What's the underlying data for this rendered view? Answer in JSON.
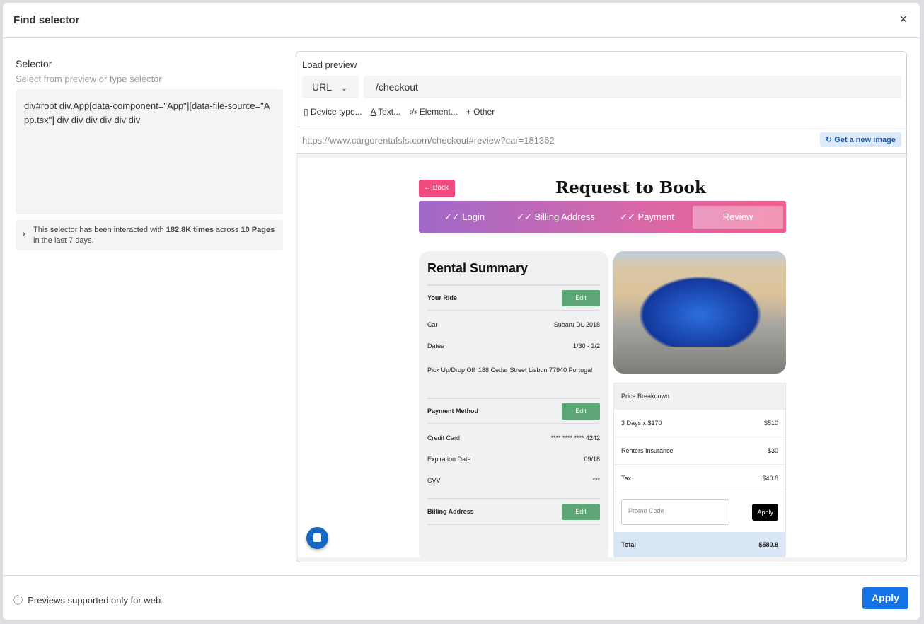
{
  "dialog": {
    "title": "Find selector",
    "close": "×"
  },
  "selector": {
    "label": "Selector",
    "hint": "Select from preview or type selector",
    "value": "div#root div.App[data-component=\"App\"][data-file-source=\"App.tsx\"] div div div div div div",
    "info_pre": "This selector has been interacted with ",
    "info_count": "182.8K times",
    "info_mid": " across ",
    "info_pages": "10 Pages",
    "info_post": " in the last 7 days."
  },
  "preview": {
    "label": "Load preview",
    "mode": "URL",
    "path": "/checkout",
    "options": [
      {
        "icon": "device-icon",
        "label": "Device type..."
      },
      {
        "icon": "text-icon",
        "label": "Text..."
      },
      {
        "icon": "code-icon",
        "label": "Element..."
      },
      {
        "icon": "plus-icon",
        "label": "Other"
      }
    ],
    "full_url": "https://www.cargorentalsfs.com/checkout#review?car=181362",
    "refresh_label": "Get a new image"
  },
  "site": {
    "back": "Back",
    "title": "Request to Book",
    "steps": [
      "Login",
      "Billing Address",
      "Payment"
    ],
    "active_step": "Review",
    "summary": {
      "title": "Rental Summary",
      "your_ride": "Your Ride",
      "edit": "Edit",
      "car_label": "Car",
      "car": "Subaru DL 2018",
      "dates_label": "Dates",
      "dates": "1/30 - 2/2",
      "pickup_label": "Pick Up/Drop Off",
      "pickup": "188 Cedar Street Lisbon 77940 Portugal",
      "payment_method": "Payment Method",
      "card_label": "Credit Card",
      "card": "**** **** **** 4242",
      "exp_label": "Expiration Date",
      "exp": "09/18",
      "cvv_label": "CVV",
      "cvv": "***",
      "billing": "Billing Address"
    },
    "price": {
      "title": "Price Breakdown",
      "rows": [
        {
          "label": "3 Days x $170",
          "value": "$510"
        },
        {
          "label": "Renters Insurance",
          "value": "$30"
        },
        {
          "label": "Tax",
          "value": "$40.8"
        }
      ],
      "promo_placeholder": "Promo Code",
      "apply": "Apply",
      "total_label": "Total",
      "total": "$580.8"
    }
  },
  "footer": {
    "note": "Previews supported only for web.",
    "apply": "Apply"
  },
  "colors": {
    "primary": "#1473e6",
    "edit": "#5fa676",
    "back": "#ef4b7f"
  }
}
